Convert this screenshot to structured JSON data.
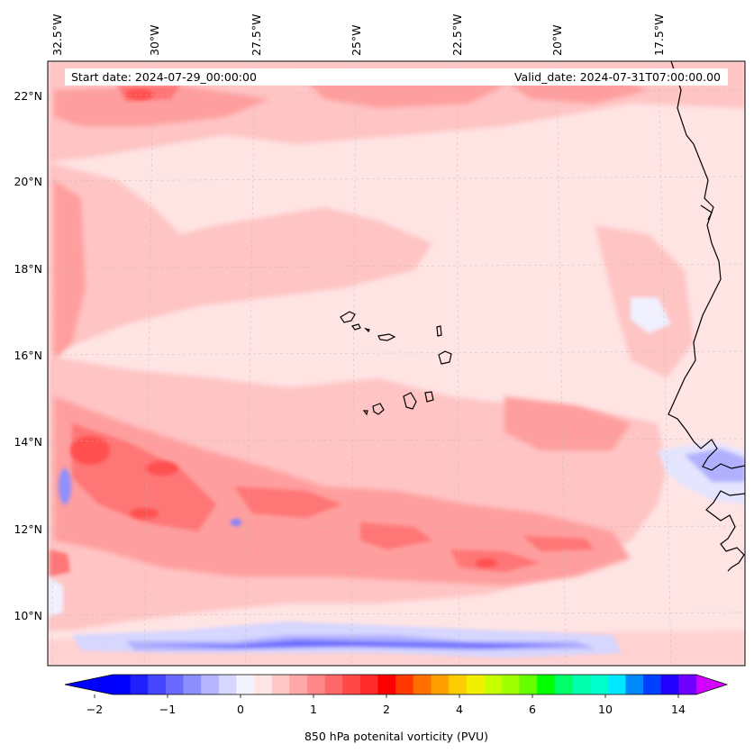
{
  "map": {
    "start_date_text": "Start date: 2024-07-29_00:00:00",
    "valid_date_text": "Valid_date: 2024-07-31T07:00:00.00",
    "lon_labels": [
      "32.5°W",
      "30°W",
      "27.5°W",
      "25°W",
      "22.5°W",
      "20°W",
      "17.5°W"
    ],
    "lat_labels": [
      "22°N",
      "20°N",
      "18°N",
      "16°N",
      "14°N",
      "12°N",
      "10°N"
    ],
    "field_colors": {
      "background": "#ffe4e4",
      "light": "#ffc4c4",
      "medium": "#ff9e9e",
      "strong": "#ff7676",
      "stronger": "#ff4f4f",
      "blue_light": "#e4e4ff",
      "blue_medium": "#b0b0ff",
      "blue_strong": "#7070ff"
    },
    "coastline_color": "#000000"
  },
  "colorbar": {
    "label": "850 hPa potenital vorticity (PVU)",
    "ticks": [
      "−2",
      "−1",
      "0",
      "1",
      "2",
      "4",
      "6",
      "10",
      "14"
    ],
    "colors": [
      "#0000ff",
      "#2020ff",
      "#4646ff",
      "#6a6aff",
      "#8e8eff",
      "#b4b4ff",
      "#d6d6ff",
      "#f4f4ff",
      "#ffe6e6",
      "#ffc8c8",
      "#ffa8a8",
      "#ff8888",
      "#ff6868",
      "#ff4848",
      "#ff2a2a",
      "#ff0000",
      "#ff3a00",
      "#ff7000",
      "#ffa000",
      "#ffcc00",
      "#f0f000",
      "#c8ff00",
      "#a0ff00",
      "#66ff00",
      "#00ff00",
      "#00ff66",
      "#00ffaa",
      "#00ffcc",
      "#00e8ff",
      "#0088ff",
      "#0040ff",
      "#2200ff",
      "#7000ff"
    ],
    "under_color": "#0000ff",
    "over_color": "#d400ff"
  }
}
